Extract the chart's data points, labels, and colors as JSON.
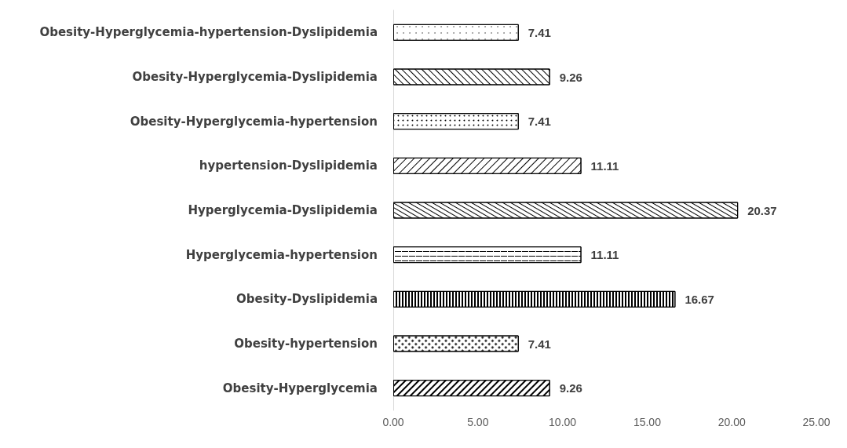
{
  "chart_data": {
    "type": "bar",
    "orientation": "horizontal",
    "categories": [
      "Obesity-Hyperglycemia-hypertension-Dyslipidemia",
      "Obesity-Hyperglycemia-Dyslipidemia",
      "Obesity-Hyperglycemia-hypertension",
      "hypertension-Dyslipidemia",
      "Hyperglycemia-Dyslipidemia",
      "Hyperglycemia-hypertension",
      "Obesity-Dyslipidemia",
      "Obesity-hypertension",
      "Obesity-Hyperglycemia"
    ],
    "values": [
      7.41,
      9.26,
      7.41,
      11.11,
      20.37,
      11.11,
      16.67,
      7.41,
      9.26
    ],
    "color": "#000000",
    "xlim": [
      0,
      25
    ],
    "xticks": [
      {
        "value": 0,
        "label": "0.00"
      },
      {
        "value": 5,
        "label": "5.00"
      },
      {
        "value": 10,
        "label": "10.00"
      },
      {
        "value": 15,
        "label": "15.00"
      },
      {
        "value": 20,
        "label": "20.00"
      },
      {
        "value": 25,
        "label": "25.00"
      }
    ],
    "data_labels": true,
    "grid": false
  }
}
